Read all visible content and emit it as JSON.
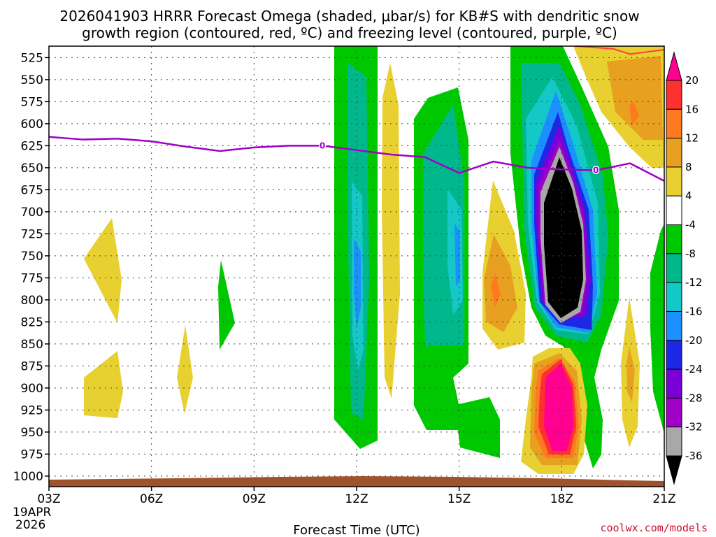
{
  "chart_data": {
    "type": "time-height cross section",
    "title_lines": [
      "2026041903 HRRR Forecast Omega (shaded, μbar/s) for KB#S with dendritic snow",
      "growth region (contoured, red, ºC) and freezing level (contoured, purple, ºC)"
    ],
    "xlabel": "Forecast Time (UTC)",
    "x_ticks": [
      "03Z",
      "06Z",
      "09Z",
      "12Z",
      "15Z",
      "18Z",
      "21Z"
    ],
    "x_hours": [
      3,
      6,
      9,
      12,
      15,
      18,
      21
    ],
    "x_range": [
      3,
      21
    ],
    "date_label": [
      "19APR",
      "2026"
    ],
    "y_ticks": [
      525,
      550,
      575,
      600,
      625,
      650,
      675,
      700,
      725,
      750,
      775,
      800,
      825,
      850,
      875,
      900,
      925,
      950,
      975,
      1000
    ],
    "y_label_strings": [
      "525",
      "550",
      "575",
      "600",
      "625",
      "650",
      "675",
      "700",
      "725",
      "750",
      "775",
      "800",
      "825",
      "850",
      "875",
      "900",
      "925",
      "950",
      "975",
      "1000"
    ],
    "y_range_hPa": [
      512,
      1012
    ],
    "grid": true,
    "colorbar": {
      "labels": [
        "20",
        "16",
        "12",
        "8",
        "4",
        "-4",
        "-8",
        "-12",
        "-16",
        "-20",
        "-24",
        "-28",
        "-32",
        "-36"
      ],
      "bounds": [
        20,
        16,
        12,
        8,
        4,
        -4,
        -8,
        -12,
        -16,
        -20,
        -24,
        -28,
        -32,
        -36
      ],
      "colors": [
        "#ff0090",
        "#ff3030",
        "#ff7a1e",
        "#e8a020",
        "#e8d030",
        "#ffffff",
        "#00c800",
        "#00b88c",
        "#14c8c8",
        "#1c90ff",
        "#1c28e6",
        "#7a00d8",
        "#a000c8",
        "#a8a8a8",
        "#000000"
      ]
    },
    "freezing_level": {
      "label": "0",
      "color": "#a000c8",
      "points": [
        [
          3,
          615
        ],
        [
          4,
          618
        ],
        [
          5,
          617
        ],
        [
          6,
          620
        ],
        [
          7,
          626
        ],
        [
          8,
          631
        ],
        [
          9,
          627
        ],
        [
          10,
          625
        ],
        [
          11,
          625
        ],
        [
          12,
          630
        ],
        [
          13,
          635
        ],
        [
          14,
          638
        ],
        [
          15,
          656
        ],
        [
          16,
          643
        ],
        [
          17,
          650
        ],
        [
          18,
          652
        ],
        [
          19,
          653
        ],
        [
          20,
          645
        ],
        [
          21,
          665
        ]
      ]
    },
    "dgz_line": {
      "color": "#ff4040",
      "points": [
        [
          18.4,
          512
        ],
        [
          19.5,
          515
        ],
        [
          20,
          521
        ],
        [
          21,
          516
        ]
      ]
    },
    "ground_color": "#a0522d",
    "watermark": "coolwx.com/models"
  }
}
